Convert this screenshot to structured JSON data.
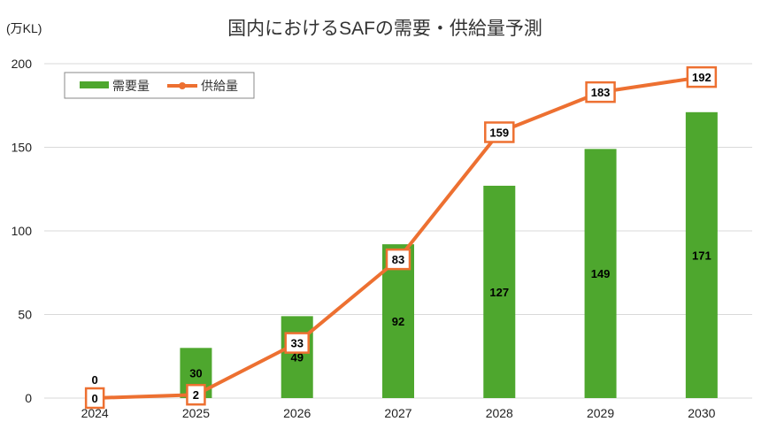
{
  "chart_data": {
    "type": "bar+line",
    "title": "国内におけるSAFの需要・供給量予測",
    "ylabel": "(万KL)",
    "xlabel": "",
    "categories": [
      "2024",
      "2025",
      "2026",
      "2027",
      "2028",
      "2029",
      "2030"
    ],
    "ylim": [
      0,
      200
    ],
    "yticks": [
      0,
      50,
      100,
      150,
      200
    ],
    "grid": true,
    "legend_position": "top-left",
    "series": [
      {
        "name": "需要量",
        "type": "bar",
        "color": "#4EA72E",
        "values": [
          0,
          30,
          49,
          92,
          127,
          149,
          171
        ]
      },
      {
        "name": "供給量",
        "type": "line",
        "color": "#ED7031",
        "values": [
          0,
          2,
          33,
          83,
          159,
          183,
          192
        ]
      }
    ]
  }
}
